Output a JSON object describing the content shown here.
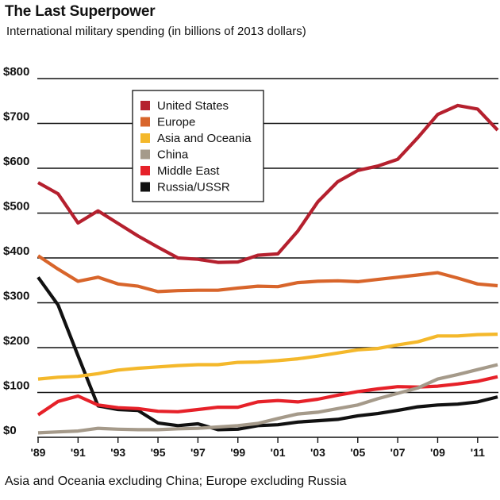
{
  "chart_data": {
    "type": "line",
    "title": "The Last Superpower",
    "subtitle": "International military spending (in billions of 2013 dollars)",
    "footnote": "Asia and Oceania excluding China; Europe excluding Russia",
    "x": [
      1989,
      1990,
      1991,
      1992,
      1993,
      1994,
      1995,
      1996,
      1997,
      1998,
      1999,
      2000,
      2001,
      2002,
      2003,
      2004,
      2005,
      2006,
      2007,
      2008,
      2009,
      2010,
      2011,
      2012
    ],
    "xticks": [
      1989,
      1991,
      1993,
      1995,
      1997,
      1999,
      2001,
      2003,
      2005,
      2007,
      2009,
      2011
    ],
    "xtick_labels": [
      "'89",
      "'91",
      "'93",
      "'95",
      "'97",
      "'99",
      "'01",
      "'03",
      "'05",
      "'07",
      "'09",
      "'11"
    ],
    "ylim": [
      0,
      800
    ],
    "yticks": [
      0,
      100,
      200,
      300,
      400,
      500,
      600,
      700,
      800
    ],
    "ytick_labels": [
      "$0",
      "$100",
      "$200",
      "$300",
      "$400",
      "$500",
      "$600",
      "$700",
      "$800"
    ],
    "grid": true,
    "legend_position": "top-center",
    "series": [
      {
        "name": "United States",
        "color": "#b5202e",
        "values": [
          568,
          543,
          478,
          505,
          477,
          449,
          424,
          400,
          397,
          390,
          391,
          406,
          409,
          460,
          525,
          570,
          595,
          605,
          620,
          668,
          720,
          740,
          732,
          685
        ]
      },
      {
        "name": "Europe",
        "color": "#d8652b",
        "values": [
          405,
          375,
          348,
          357,
          342,
          337,
          325,
          327,
          328,
          328,
          333,
          337,
          336,
          345,
          348,
          349,
          347,
          352,
          357,
          362,
          367,
          355,
          342,
          338
        ]
      },
      {
        "name": "Asia and Oceania",
        "color": "#f4b82b",
        "values": [
          130,
          134,
          136,
          142,
          150,
          154,
          157,
          160,
          162,
          162,
          167,
          168,
          171,
          175,
          181,
          188,
          195,
          198,
          206,
          213,
          226,
          226,
          229,
          230
        ]
      },
      {
        "name": "China",
        "color": "#a59a8a",
        "values": [
          10,
          12,
          14,
          20,
          18,
          17,
          17,
          19,
          20,
          23,
          26,
          31,
          42,
          52,
          56,
          64,
          72,
          86,
          98,
          110,
          130,
          140,
          151,
          162
        ]
      },
      {
        "name": "Middle East",
        "color": "#e62129",
        "values": [
          50,
          80,
          92,
          72,
          66,
          64,
          58,
          57,
          62,
          67,
          67,
          79,
          82,
          79,
          85,
          94,
          102,
          108,
          113,
          112,
          114,
          119,
          125,
          135
        ]
      },
      {
        "name": "Russia/USSR",
        "color": "#111111",
        "values": [
          357,
          295,
          182,
          70,
          62,
          60,
          32,
          26,
          30,
          17,
          18,
          26,
          28,
          34,
          37,
          40,
          48,
          53,
          60,
          68,
          72,
          74,
          79,
          90
        ]
      }
    ]
  }
}
